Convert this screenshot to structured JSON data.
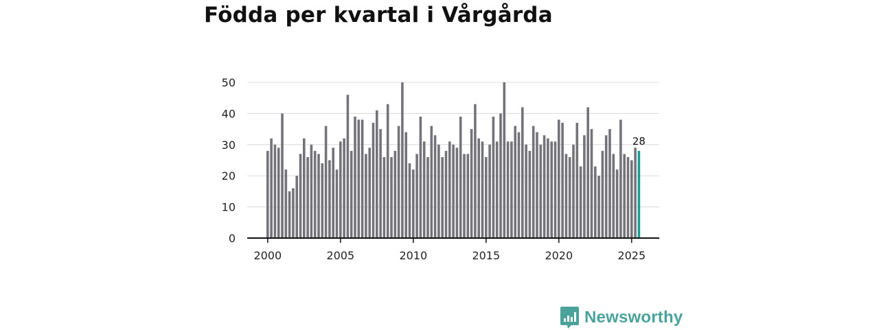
{
  "title": "Födda per kvartal i Vårgårda",
  "brand": {
    "name": "Newsworthy",
    "icon": "bar-chart-speech-bubble-icon",
    "color": "#4aa39b"
  },
  "colors": {
    "bar": "#74737a",
    "highlight": "#199e94",
    "grid": "#d9d9d9",
    "axis": "#111111"
  },
  "chart_data": {
    "type": "bar",
    "title": "Födda per kvartal i Vårgårda",
    "xlabel": "",
    "ylabel": "",
    "ylim": [
      0,
      50
    ],
    "yticks": [
      0,
      10,
      20,
      30,
      40,
      50
    ],
    "xticks": [
      "2000",
      "2005",
      "2010",
      "2015",
      "2020",
      "2025"
    ],
    "x_start_year": 2000,
    "grid": true,
    "highlight_last": true,
    "last_value_label": "28",
    "series": [
      {
        "name": "Födda",
        "values": [
          28,
          32,
          30,
          29,
          40,
          22,
          15,
          16,
          20,
          27,
          32,
          26,
          30,
          28,
          27,
          24,
          36,
          25,
          29,
          22,
          31,
          32,
          46,
          28,
          39,
          38,
          38,
          27,
          29,
          37,
          41,
          35,
          26,
          43,
          26,
          28,
          36,
          50,
          34,
          24,
          22,
          27,
          39,
          31,
          26,
          36,
          33,
          30,
          26,
          28,
          31,
          30,
          29,
          39,
          27,
          27,
          35,
          43,
          32,
          31,
          26,
          30,
          39,
          31,
          40,
          50,
          31,
          31,
          36,
          34,
          42,
          30,
          28,
          36,
          34,
          30,
          33,
          32,
          31,
          31,
          38,
          37,
          27,
          26,
          30,
          37,
          23,
          33,
          42,
          35,
          23,
          20,
          28,
          33,
          35,
          27,
          22,
          38,
          27,
          26,
          25,
          29,
          28
        ]
      }
    ]
  }
}
